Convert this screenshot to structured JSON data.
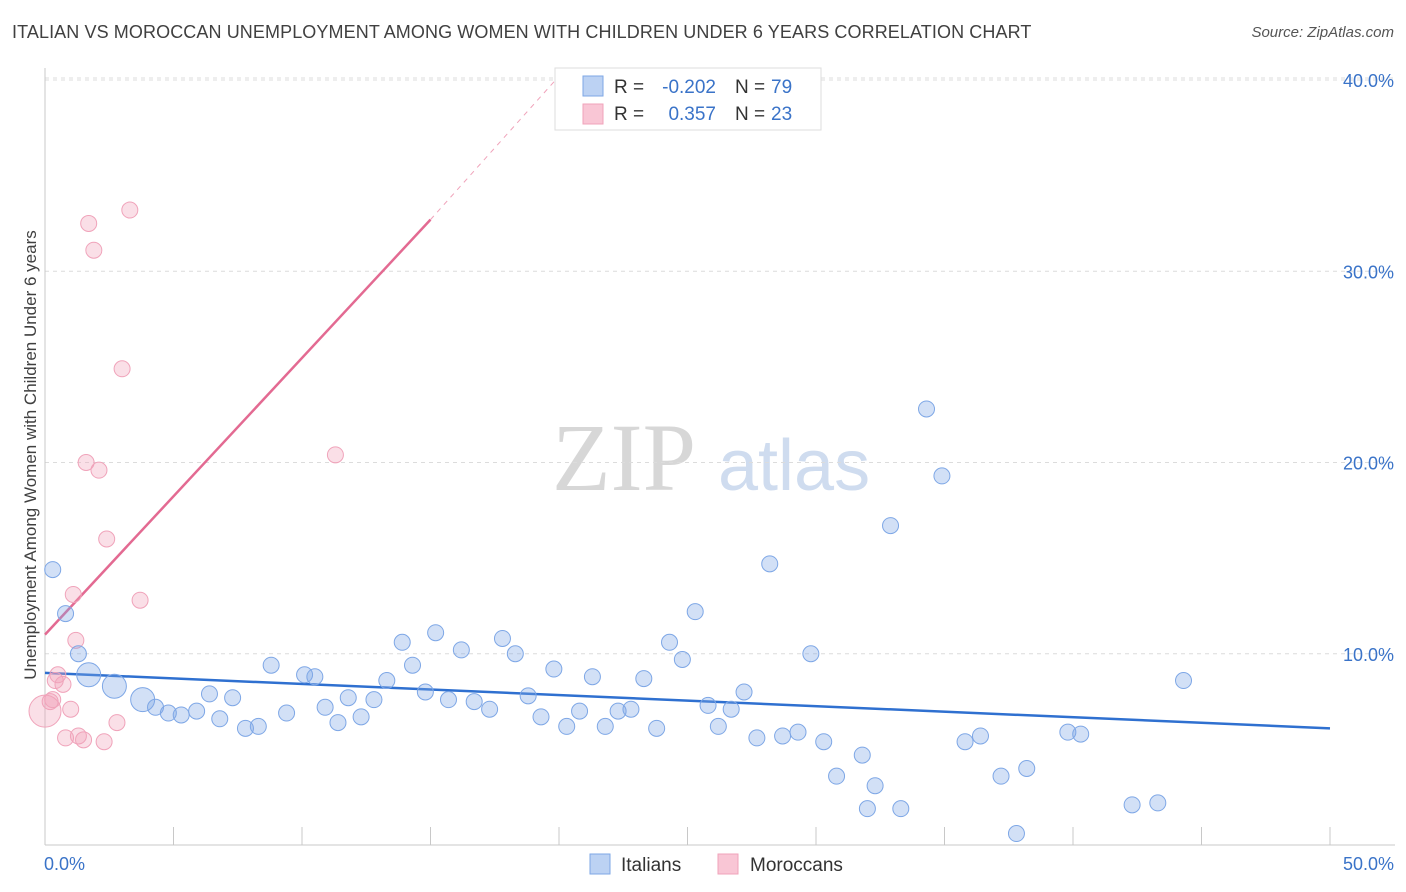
{
  "title": "ITALIAN VS MOROCCAN UNEMPLOYMENT AMONG WOMEN WITH CHILDREN UNDER 6 YEARS CORRELATION CHART",
  "source": "Source: ZipAtlas.com",
  "watermark": {
    "zip": "ZIP",
    "atlas": "atlas"
  },
  "chart_data": {
    "type": "scatter",
    "title": "ITALIAN VS MOROCCAN UNEMPLOYMENT AMONG WOMEN WITH CHILDREN UNDER 6 YEARS CORRELATION CHART",
    "xlabel": "",
    "ylabel": "Unemployment Among Women with Children Under 6 years",
    "xlim": [
      0,
      50
    ],
    "ylim": [
      0,
      40
    ],
    "x_tick_labels": [
      "0.0%",
      "50.0%"
    ],
    "y_ticks": [
      10,
      20,
      30,
      40
    ],
    "y_tick_labels": [
      "10.0%",
      "20.0%",
      "30.0%",
      "40.0%"
    ],
    "grid": true,
    "legend_position": "top-center",
    "colors": {
      "italians": "#7ea7e6",
      "italians_line": "#2f70d0",
      "moroccans": "#f0a3ba",
      "moroccans_line": "#e36a92"
    },
    "stats": [
      {
        "r_label": "R =",
        "r_value": "-0.202",
        "n_label": "N =",
        "n_value": "79"
      },
      {
        "r_label": "R =",
        "r_value": "0.357",
        "n_label": "N =",
        "n_value": "23"
      }
    ],
    "series": [
      {
        "name": "Italians",
        "trend": {
          "x": [
            0,
            50
          ],
          "y": [
            9.0,
            6.1
          ]
        },
        "points": [
          [
            0.3,
            14.4,
            2
          ],
          [
            0.8,
            12.1,
            2
          ],
          [
            1.3,
            10.0,
            2
          ],
          [
            1.7,
            8.9,
            3
          ],
          [
            2.7,
            8.3,
            3
          ],
          [
            3.8,
            7.6,
            3
          ],
          [
            4.3,
            7.2,
            2
          ],
          [
            4.8,
            6.9,
            2
          ],
          [
            5.3,
            6.8,
            2
          ],
          [
            5.9,
            7.0,
            2
          ],
          [
            6.4,
            7.9,
            2
          ],
          [
            6.8,
            6.6,
            2
          ],
          [
            7.3,
            7.7,
            2
          ],
          [
            7.8,
            6.1,
            2
          ],
          [
            8.3,
            6.2,
            2
          ],
          [
            8.8,
            9.4,
            2
          ],
          [
            9.4,
            6.9,
            2
          ],
          [
            10.1,
            8.9,
            2
          ],
          [
            10.5,
            8.8,
            2
          ],
          [
            10.9,
            7.2,
            2
          ],
          [
            11.4,
            6.4,
            2
          ],
          [
            11.8,
            7.7,
            2
          ],
          [
            12.3,
            6.7,
            2
          ],
          [
            12.8,
            7.6,
            2
          ],
          [
            13.3,
            8.6,
            2
          ],
          [
            13.9,
            10.6,
            2
          ],
          [
            14.3,
            9.4,
            2
          ],
          [
            14.8,
            8.0,
            2
          ],
          [
            15.2,
            11.1,
            2
          ],
          [
            15.7,
            7.6,
            2
          ],
          [
            16.2,
            10.2,
            2
          ],
          [
            16.7,
            7.5,
            2
          ],
          [
            17.3,
            7.1,
            2
          ],
          [
            17.8,
            10.8,
            2
          ],
          [
            18.3,
            10.0,
            2
          ],
          [
            18.8,
            7.8,
            2
          ],
          [
            19.3,
            6.7,
            2
          ],
          [
            19.8,
            9.2,
            2
          ],
          [
            20.3,
            6.2,
            2
          ],
          [
            20.8,
            7.0,
            2
          ],
          [
            21.3,
            8.8,
            2
          ],
          [
            21.8,
            6.2,
            2
          ],
          [
            22.3,
            7.0,
            2
          ],
          [
            22.8,
            7.1,
            2
          ],
          [
            23.3,
            8.7,
            2
          ],
          [
            23.8,
            6.1,
            2
          ],
          [
            24.3,
            10.6,
            2
          ],
          [
            24.8,
            9.7,
            2
          ],
          [
            25.3,
            12.2,
            2
          ],
          [
            25.8,
            7.3,
            2
          ],
          [
            26.2,
            6.2,
            2
          ],
          [
            26.7,
            7.1,
            2
          ],
          [
            27.2,
            8.0,
            2
          ],
          [
            27.7,
            5.6,
            2
          ],
          [
            28.2,
            14.7,
            2
          ],
          [
            28.7,
            5.7,
            2
          ],
          [
            29.3,
            5.9,
            2
          ],
          [
            29.8,
            10.0,
            2
          ],
          [
            30.3,
            5.4,
            2
          ],
          [
            30.8,
            3.6,
            2
          ],
          [
            31.8,
            4.7,
            2
          ],
          [
            32.0,
            1.9,
            2
          ],
          [
            32.3,
            3.1,
            2
          ],
          [
            32.9,
            16.7,
            2
          ],
          [
            33.3,
            1.9,
            2
          ],
          [
            34.3,
            22.8,
            2
          ],
          [
            34.9,
            19.3,
            2
          ],
          [
            35.8,
            5.4,
            2
          ],
          [
            36.4,
            5.7,
            2
          ],
          [
            37.2,
            3.6,
            2
          ],
          [
            37.8,
            0.6,
            2
          ],
          [
            38.2,
            4.0,
            2
          ],
          [
            39.8,
            5.9,
            2
          ],
          [
            40.3,
            5.8,
            2
          ],
          [
            42.3,
            2.1,
            2
          ],
          [
            43.3,
            2.2,
            2
          ],
          [
            44.3,
            8.6,
            2
          ]
        ]
      },
      {
        "name": "Moroccans",
        "trend": {
          "x": [
            0,
            15
          ],
          "y": [
            11.0,
            32.7
          ]
        },
        "trend_dashed": {
          "x": [
            15,
            20
          ],
          "y": [
            32.7,
            40.2
          ]
        },
        "points": [
          [
            0.0,
            7.0,
            4
          ],
          [
            0.3,
            7.6,
            2
          ],
          [
            0.5,
            8.9,
            2
          ],
          [
            0.7,
            8.4,
            2
          ],
          [
            0.8,
            5.6,
            2
          ],
          [
            1.0,
            7.1,
            2
          ],
          [
            1.1,
            13.1,
            2
          ],
          [
            1.2,
            10.7,
            2
          ],
          [
            1.3,
            5.7,
            2
          ],
          [
            1.5,
            5.5,
            2
          ],
          [
            1.6,
            20.0,
            2
          ],
          [
            1.7,
            32.5,
            2
          ],
          [
            1.9,
            31.1,
            2
          ],
          [
            2.1,
            19.6,
            2
          ],
          [
            2.3,
            5.4,
            2
          ],
          [
            2.4,
            16.0,
            2
          ],
          [
            2.8,
            6.4,
            2
          ],
          [
            3.0,
            24.9,
            2
          ],
          [
            3.3,
            33.2,
            2
          ],
          [
            3.7,
            12.8,
            2
          ],
          [
            11.3,
            20.4,
            2
          ],
          [
            0.2,
            7.5,
            2
          ],
          [
            0.4,
            8.6,
            2
          ]
        ]
      }
    ]
  },
  "bottom_legend": [
    {
      "name": "Italians"
    },
    {
      "name": "Moroccans"
    }
  ]
}
